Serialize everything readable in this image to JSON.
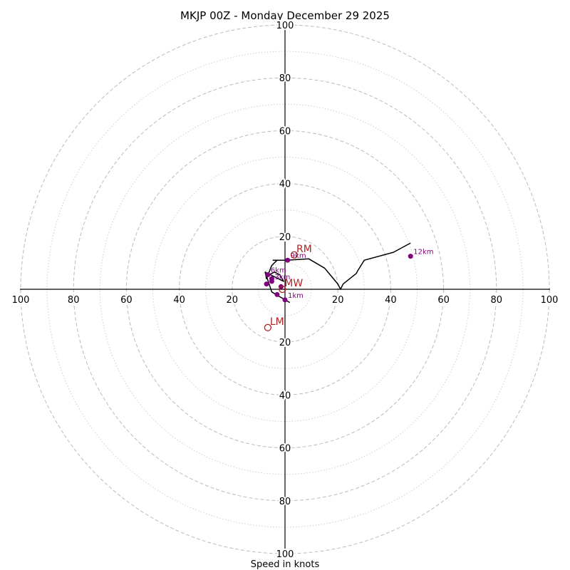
{
  "chart_data": {
    "type": "hodograph",
    "title": "MKJP 00Z - Monday December 29 2025",
    "xlabel": "Speed in knots",
    "units": "knots",
    "ring_max": 100,
    "major_rings": [
      20,
      40,
      60,
      80,
      100
    ],
    "minor_rings": [
      10,
      30,
      50,
      70,
      90
    ],
    "tick_labels": {
      "top": [
        "20",
        "40",
        "60",
        "80",
        "100"
      ],
      "bottom": [
        "20",
        "40",
        "60",
        "80",
        "100"
      ],
      "left": [
        "20",
        "40",
        "60",
        "80",
        "100"
      ],
      "right": [
        "20",
        "40",
        "60",
        "80",
        "100"
      ]
    },
    "trace": {
      "color": "#000000",
      "u": [
        1.8,
        -2.5,
        -5.0,
        -6.0,
        -7.0,
        -4.0,
        -2.0,
        -0.5,
        -7.5,
        -7.0,
        -5.0,
        -3.0,
        -4.5,
        0.5,
        9.0,
        15.0,
        20.0,
        21.0,
        22.0,
        27.0,
        27.5,
        30.0,
        41.0,
        47.5
      ],
      "v": [
        -5.0,
        -2.5,
        -1.0,
        2.0,
        5.0,
        6.5,
        5.5,
        3.0,
        6.5,
        4.0,
        9.0,
        11.0,
        11.0,
        11.0,
        11.5,
        8.0,
        2.0,
        0.0,
        2.0,
        6.0,
        7.0,
        11.0,
        14.0,
        17.5
      ]
    },
    "height_markers": {
      "color": "#800080",
      "points": [
        {
          "label": "",
          "u": -1.5,
          "v": 1.0
        },
        {
          "label": "1km",
          "u": 0.0,
          "v": -4.0
        },
        {
          "label": "",
          "u": -3.0,
          "v": -2.0
        },
        {
          "label": "",
          "u": -7.0,
          "v": 2.0
        },
        {
          "label": "3km",
          "u": -5.0,
          "v": 3.0
        },
        {
          "label": "",
          "u": -5.0,
          "v": 4.0
        },
        {
          "label": "6km",
          "u": -6.5,
          "v": 5.5
        },
        {
          "label": "9km",
          "u": 1.0,
          "v": 11.0
        },
        {
          "label": "12km",
          "u": 47.5,
          "v": 12.5
        }
      ]
    },
    "storm_motion": {
      "color": "#b22222",
      "rm": {
        "label": "RM",
        "u": 3.5,
        "v": 13.0
      },
      "lm": {
        "label": "LM",
        "u": -6.5,
        "v": -14.5
      },
      "mean": {
        "label": "MW",
        "u": -1.0,
        "v": 0.0
      }
    }
  }
}
